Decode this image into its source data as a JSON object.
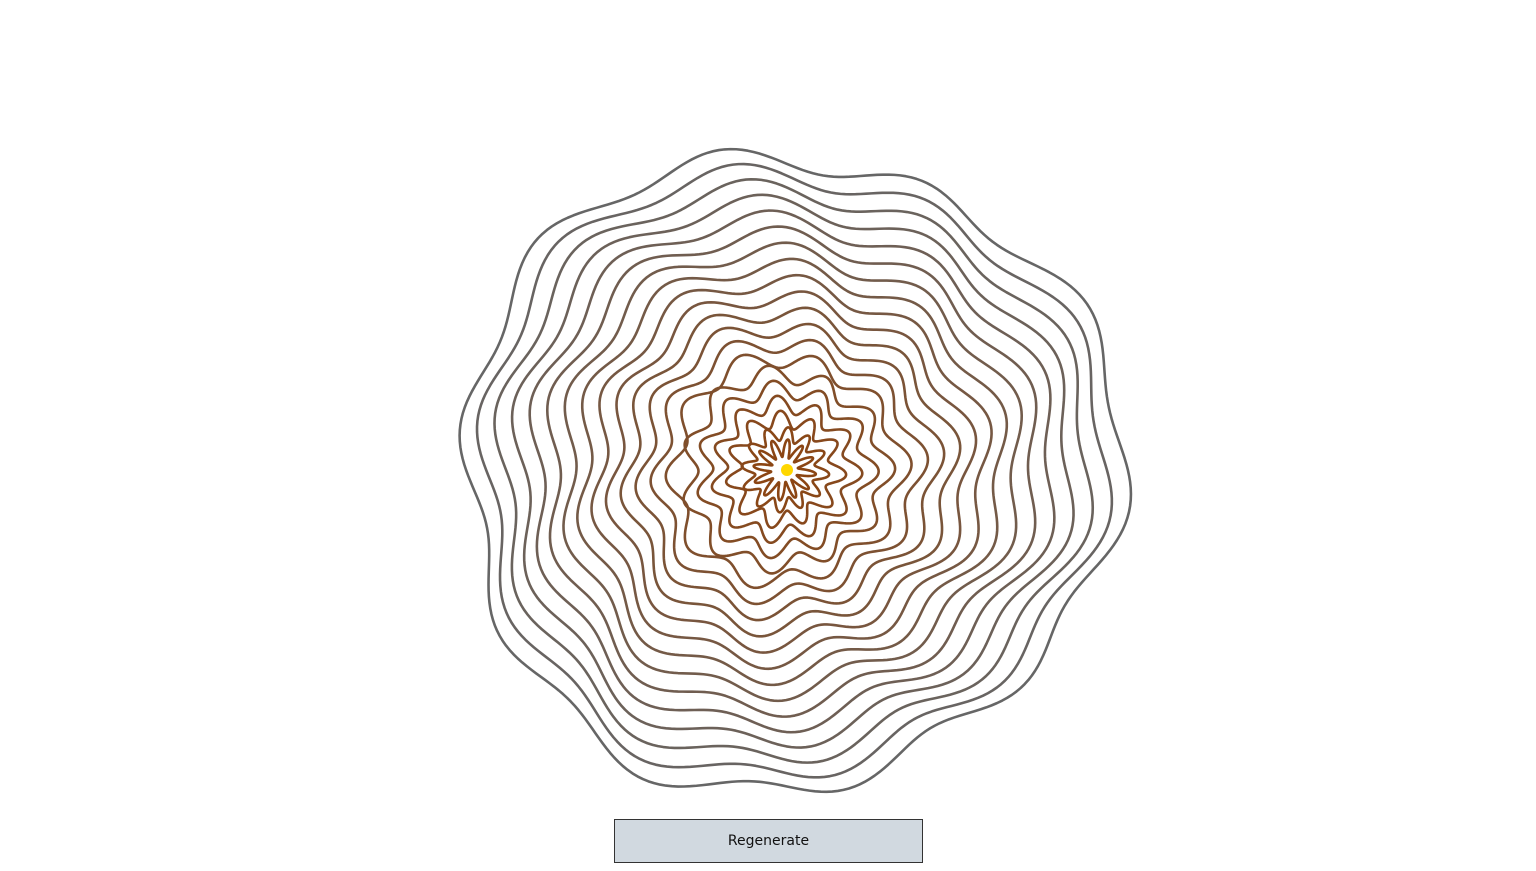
{
  "controls": {
    "regenerate_label": "Regenerate"
  },
  "rings": {
    "count": 20,
    "inner_color": "#8b4513",
    "outer_color": "#666666",
    "center_dot_color": "#ffd700",
    "line_color_mode": "gradient-inner-to-outer"
  },
  "icons": {
    "center_dot": "sun-dot-icon"
  }
}
